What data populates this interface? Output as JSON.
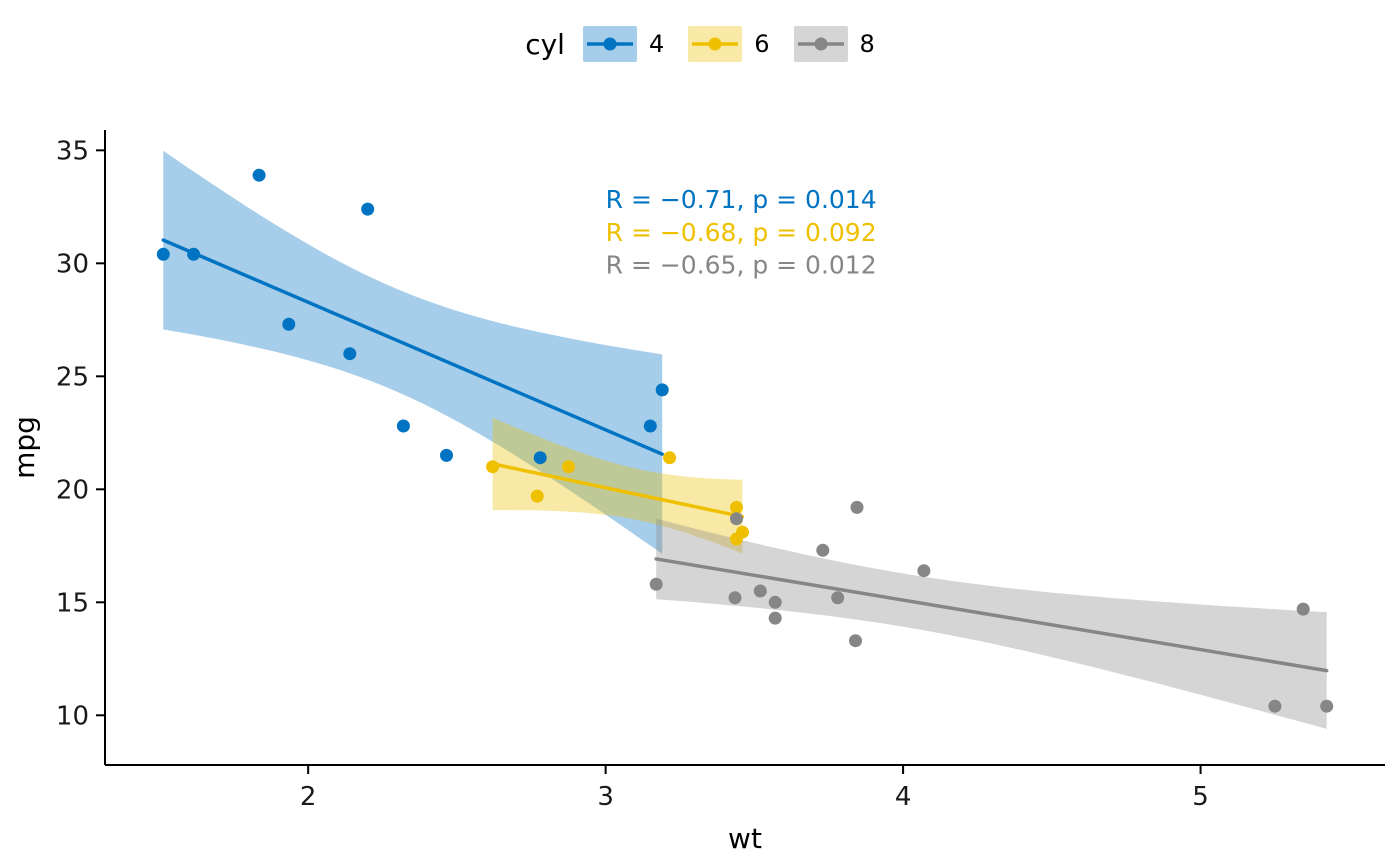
{
  "chart_data": {
    "type": "scatter",
    "title": "",
    "xlabel": "wt",
    "ylabel": "mpg",
    "xlim": [
      1.317,
      5.62
    ],
    "ylim": [
      7.8,
      35.9
    ],
    "x_ticks": [
      2,
      3,
      4,
      5
    ],
    "y_ticks": [
      10,
      15,
      20,
      25,
      30,
      35
    ],
    "grid": false,
    "legend": {
      "title": "cyl",
      "position": "top"
    },
    "smooth": {
      "method": "lm",
      "ci_level": 0.95,
      "band_opacity": 0.35
    },
    "series": [
      {
        "name": "4",
        "color": "#0073C2",
        "points": [
          [
            2.32,
            22.8
          ],
          [
            3.19,
            24.4
          ],
          [
            3.15,
            22.8
          ],
          [
            2.2,
            32.4
          ],
          [
            1.615,
            30.4
          ],
          [
            1.835,
            33.9
          ],
          [
            2.465,
            21.5
          ],
          [
            1.935,
            27.3
          ],
          [
            2.14,
            26.0
          ],
          [
            1.513,
            30.4
          ],
          [
            2.78,
            21.4
          ]
        ]
      },
      {
        "name": "6",
        "color": "#EFC000",
        "points": [
          [
            2.62,
            21.0
          ],
          [
            2.875,
            21.0
          ],
          [
            3.215,
            21.4
          ],
          [
            3.46,
            18.1
          ],
          [
            3.44,
            19.2
          ],
          [
            3.44,
            17.8
          ],
          [
            2.77,
            19.7
          ]
        ]
      },
      {
        "name": "8",
        "color": "#868686",
        "points": [
          [
            3.44,
            18.7
          ],
          [
            3.57,
            14.3
          ],
          [
            4.07,
            16.4
          ],
          [
            3.73,
            17.3
          ],
          [
            3.78,
            15.2
          ],
          [
            5.25,
            10.4
          ],
          [
            5.424,
            10.4
          ],
          [
            5.345,
            14.7
          ],
          [
            3.52,
            15.5
          ],
          [
            3.435,
            15.2
          ],
          [
            3.84,
            13.3
          ],
          [
            3.845,
            19.2
          ],
          [
            3.17,
            15.8
          ],
          [
            3.57,
            15.0
          ]
        ]
      }
    ],
    "annotations": [
      {
        "text": "R = −0.71, p = 0.014",
        "color": "#0073C2",
        "x": 3.0,
        "y": 32.8
      },
      {
        "text": "R = −0.68, p = 0.092",
        "color": "#EFC000",
        "x": 3.0,
        "y": 31.35
      },
      {
        "text": "R = −0.65, p = 0.012",
        "color": "#868686",
        "x": 3.0,
        "y": 29.9
      }
    ]
  }
}
